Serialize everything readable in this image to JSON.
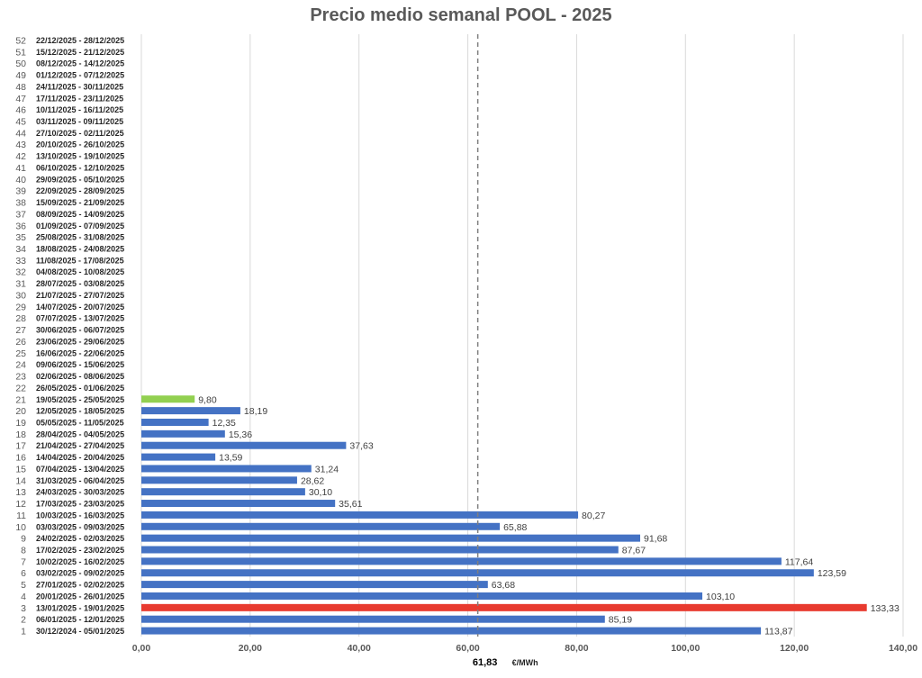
{
  "chart_data": {
    "type": "bar",
    "orientation": "horizontal",
    "title": "Precio medio semanal POOL - 2025",
    "xlabel": "€/MWh",
    "xlim": [
      0,
      140
    ],
    "x_ticks": [
      "0,00",
      "20,00",
      "40,00",
      "60,00",
      "80,00",
      "100,00",
      "120,00",
      "140,00"
    ],
    "grid": "vertical",
    "average": {
      "value": 61.83,
      "label": "61,83",
      "style": "dashed"
    },
    "colors": {
      "default": "#4472C4",
      "max": "#E83A2F",
      "min": "#92D050",
      "grid": "#D9D9D9",
      "average_line": "#7F7F7F"
    },
    "weeks": [
      {
        "num": "1",
        "label": "30/12/2024 - 05/01/2025",
        "value": 113.87,
        "value_label": "113,87",
        "color": "default"
      },
      {
        "num": "2",
        "label": "06/01/2025 - 12/01/2025",
        "value": 85.19,
        "value_label": "85,19",
        "color": "default"
      },
      {
        "num": "3",
        "label": "13/01/2025 - 19/01/2025",
        "value": 133.33,
        "value_label": "133,33",
        "color": "max"
      },
      {
        "num": "4",
        "label": "20/01/2025 - 26/01/2025",
        "value": 103.1,
        "value_label": "103,10",
        "color": "default"
      },
      {
        "num": "5",
        "label": "27/01/2025 - 02/02/2025",
        "value": 63.68,
        "value_label": "63,68",
        "color": "default"
      },
      {
        "num": "6",
        "label": "03/02/2025 - 09/02/2025",
        "value": 123.59,
        "value_label": "123,59",
        "color": "default"
      },
      {
        "num": "7",
        "label": "10/02/2025 - 16/02/2025",
        "value": 117.64,
        "value_label": "117,64",
        "color": "default"
      },
      {
        "num": "8",
        "label": "17/02/2025 - 23/02/2025",
        "value": 87.67,
        "value_label": "87,67",
        "color": "default"
      },
      {
        "num": "9",
        "label": "24/02/2025 - 02/03/2025",
        "value": 91.68,
        "value_label": "91,68",
        "color": "default"
      },
      {
        "num": "10",
        "label": "03/03/2025 - 09/03/2025",
        "value": 65.88,
        "value_label": "65,88",
        "color": "default"
      },
      {
        "num": "11",
        "label": "10/03/2025 - 16/03/2025",
        "value": 80.27,
        "value_label": "80,27",
        "color": "default"
      },
      {
        "num": "12",
        "label": "17/03/2025 - 23/03/2025",
        "value": 35.61,
        "value_label": "35,61",
        "color": "default"
      },
      {
        "num": "13",
        "label": "24/03/2025 - 30/03/2025",
        "value": 30.1,
        "value_label": "30,10",
        "color": "default"
      },
      {
        "num": "14",
        "label": "31/03/2025 - 06/04/2025",
        "value": 28.62,
        "value_label": "28,62",
        "color": "default"
      },
      {
        "num": "15",
        "label": "07/04/2025 - 13/04/2025",
        "value": 31.24,
        "value_label": "31,24",
        "color": "default"
      },
      {
        "num": "16",
        "label": "14/04/2025 - 20/04/2025",
        "value": 13.59,
        "value_label": "13,59",
        "color": "default"
      },
      {
        "num": "17",
        "label": "21/04/2025 - 27/04/2025",
        "value": 37.63,
        "value_label": "37,63",
        "color": "default"
      },
      {
        "num": "18",
        "label": "28/04/2025 - 04/05/2025",
        "value": 15.36,
        "value_label": "15,36",
        "color": "default"
      },
      {
        "num": "19",
        "label": "05/05/2025 - 11/05/2025",
        "value": 12.35,
        "value_label": "12,35",
        "color": "default"
      },
      {
        "num": "20",
        "label": "12/05/2025 - 18/05/2025",
        "value": 18.19,
        "value_label": "18,19",
        "color": "default"
      },
      {
        "num": "21",
        "label": "19/05/2025 - 25/05/2025",
        "value": 9.8,
        "value_label": "9,80",
        "color": "min"
      },
      {
        "num": "22",
        "label": "26/05/2025 - 01/06/2025",
        "value": null
      },
      {
        "num": "23",
        "label": "02/06/2025 - 08/06/2025",
        "value": null
      },
      {
        "num": "24",
        "label": "09/06/2025 - 15/06/2025",
        "value": null
      },
      {
        "num": "25",
        "label": "16/06/2025 - 22/06/2025",
        "value": null
      },
      {
        "num": "26",
        "label": "23/06/2025 - 29/06/2025",
        "value": null
      },
      {
        "num": "27",
        "label": "30/06/2025 - 06/07/2025",
        "value": null
      },
      {
        "num": "28",
        "label": "07/07/2025 - 13/07/2025",
        "value": null
      },
      {
        "num": "29",
        "label": "14/07/2025 - 20/07/2025",
        "value": null
      },
      {
        "num": "30",
        "label": "21/07/2025 - 27/07/2025",
        "value": null
      },
      {
        "num": "31",
        "label": "28/07/2025 - 03/08/2025",
        "value": null
      },
      {
        "num": "32",
        "label": "04/08/2025 - 10/08/2025",
        "value": null
      },
      {
        "num": "33",
        "label": "11/08/2025 - 17/08/2025",
        "value": null
      },
      {
        "num": "34",
        "label": "18/08/2025 - 24/08/2025",
        "value": null
      },
      {
        "num": "35",
        "label": "25/08/2025 - 31/08/2025",
        "value": null
      },
      {
        "num": "36",
        "label": "01/09/2025 - 07/09/2025",
        "value": null
      },
      {
        "num": "37",
        "label": "08/09/2025 - 14/09/2025",
        "value": null
      },
      {
        "num": "38",
        "label": "15/09/2025 - 21/09/2025",
        "value": null
      },
      {
        "num": "39",
        "label": "22/09/2025 - 28/09/2025",
        "value": null
      },
      {
        "num": "40",
        "label": "29/09/2025 - 05/10/2025",
        "value": null
      },
      {
        "num": "41",
        "label": "06/10/2025 - 12/10/2025",
        "value": null
      },
      {
        "num": "42",
        "label": "13/10/2025 - 19/10/2025",
        "value": null
      },
      {
        "num": "43",
        "label": "20/10/2025 - 26/10/2025",
        "value": null
      },
      {
        "num": "44",
        "label": "27/10/2025 - 02/11/2025",
        "value": null
      },
      {
        "num": "45",
        "label": "03/11/2025 - 09/11/2025",
        "value": null
      },
      {
        "num": "46",
        "label": "10/11/2025 - 16/11/2025",
        "value": null
      },
      {
        "num": "47",
        "label": "17/11/2025 - 23/11/2025",
        "value": null
      },
      {
        "num": "48",
        "label": "24/11/2025 - 30/11/2025",
        "value": null
      },
      {
        "num": "49",
        "label": "01/12/2025 - 07/12/2025",
        "value": null
      },
      {
        "num": "50",
        "label": "08/12/2025 - 14/12/2025",
        "value": null
      },
      {
        "num": "51",
        "label": "15/12/2025 - 21/12/2025",
        "value": null
      },
      {
        "num": "52",
        "label": "22/12/2025 - 28/12/2025",
        "value": null
      }
    ]
  }
}
